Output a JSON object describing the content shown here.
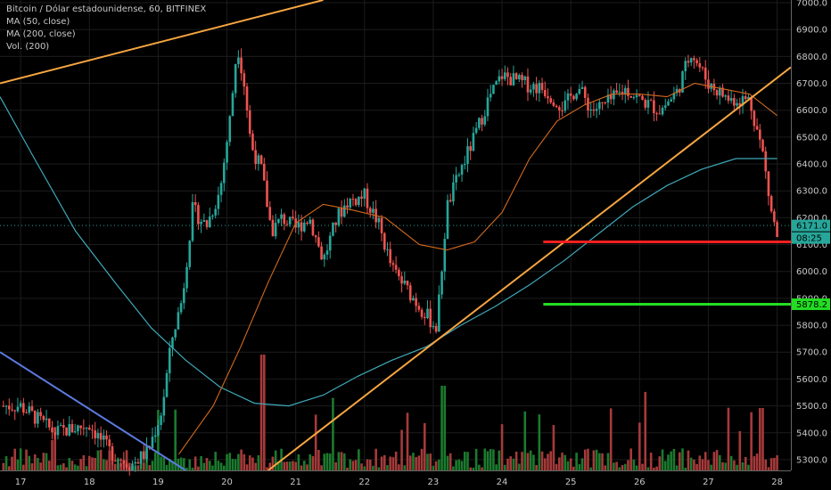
{
  "legend": {
    "symbol_line": "Bitcoin / Dólar estadounidense, 60, BITFINEX",
    "ma50": "MA (50, close)",
    "ma200": "MA (200, close)",
    "vol": "Vol. (200)"
  },
  "price_tags": {
    "last": "6171.0",
    "countdown": "08:25",
    "support": "5878.2"
  },
  "colors": {
    "background": "#000000",
    "grid": "#1c1c1c",
    "up": "#26a69a",
    "down": "#ef5350",
    "up_volume": "#1b7a2e",
    "down_volume": "#a63a3a",
    "ma50": "#d2691e",
    "ma200": "#3fa8b8",
    "trendline": "#f7a541",
    "blue_line": "#5b7be0",
    "resistance": "#ff2020",
    "support": "#22dd22",
    "axis_text": "#c8c8c8",
    "last_price_tag": "#26a69a"
  },
  "chart_data": {
    "type": "candlestick",
    "symbol": "Bitcoin / Dólar estadounidense",
    "interval": "60",
    "exchange": "BITFINEX",
    "x_ticks": [
      "17",
      "18",
      "19",
      "20",
      "21",
      "22",
      "23",
      "24",
      "25",
      "26",
      "27",
      "28"
    ],
    "y_ticks": [
      5300,
      5400,
      5500,
      5600,
      5700,
      5800,
      5900,
      6000,
      6100,
      6200,
      6300,
      6400,
      6500,
      6600,
      6700,
      6800,
      6900,
      7000
    ],
    "ylim": [
      5260,
      7010
    ],
    "xlim": [
      16.7,
      28.2
    ],
    "last_price": 6171.0,
    "horizontal_levels": [
      {
        "price": 6110,
        "color": "red",
        "from_day": 24.6
      },
      {
        "price": 5878.2,
        "color": "green",
        "from_day": 24.6
      }
    ],
    "trendlines": [
      {
        "color": "orange",
        "from": [
          16.7,
          6700
        ],
        "to": [
          21.4,
          7010
        ]
      },
      {
        "color": "orange",
        "from": [
          20.6,
          5260
        ],
        "to": [
          28.2,
          6760
        ]
      },
      {
        "color": "blue",
        "from": [
          16.7,
          5700
        ],
        "to": [
          19.4,
          5260
        ]
      }
    ],
    "price_path": [
      [
        17.0,
        5500
      ],
      [
        17.5,
        5400
      ],
      [
        18.0,
        5430
      ],
      [
        18.3,
        5330
      ],
      [
        18.6,
        5280
      ],
      [
        18.85,
        5330
      ],
      [
        19.05,
        5480
      ],
      [
        19.2,
        5750
      ],
      [
        19.35,
        5900
      ],
      [
        19.5,
        6230
      ],
      [
        19.7,
        6170
      ],
      [
        19.9,
        6300
      ],
      [
        20.05,
        6580
      ],
      [
        20.15,
        6850
      ],
      [
        20.25,
        6700
      ],
      [
        20.35,
        6470
      ],
      [
        20.5,
        6380
      ],
      [
        20.65,
        6150
      ],
      [
        20.8,
        6200
      ],
      [
        21.0,
        6160
      ],
      [
        21.2,
        6200
      ],
      [
        21.4,
        6040
      ],
      [
        21.6,
        6200
      ],
      [
        21.75,
        6260
      ],
      [
        22.0,
        6280
      ],
      [
        22.2,
        6180
      ],
      [
        22.4,
        6010
      ],
      [
        22.6,
        5940
      ],
      [
        22.8,
        5870
      ],
      [
        23.05,
        5790
      ],
      [
        23.2,
        6240
      ],
      [
        23.4,
        6380
      ],
      [
        23.6,
        6500
      ],
      [
        23.8,
        6640
      ],
      [
        24.0,
        6730
      ],
      [
        24.3,
        6700
      ],
      [
        24.6,
        6680
      ],
      [
        24.9,
        6610
      ],
      [
        25.1,
        6690
      ],
      [
        25.3,
        6600
      ],
      [
        25.5,
        6620
      ],
      [
        25.8,
        6680
      ],
      [
        26.0,
        6640
      ],
      [
        26.3,
        6600
      ],
      [
        26.55,
        6670
      ],
      [
        26.75,
        6820
      ],
      [
        27.0,
        6700
      ],
      [
        27.3,
        6640
      ],
      [
        27.6,
        6640
      ],
      [
        27.8,
        6430
      ],
      [
        27.9,
        6240
      ],
      [
        28.0,
        6130
      ]
    ],
    "ma50_path": [
      [
        19.3,
        5320
      ],
      [
        19.8,
        5500
      ],
      [
        20.2,
        5720
      ],
      [
        20.6,
        5960
      ],
      [
        21.0,
        6180
      ],
      [
        21.4,
        6250
      ],
      [
        21.8,
        6230
      ],
      [
        22.3,
        6200
      ],
      [
        22.8,
        6100
      ],
      [
        23.2,
        6080
      ],
      [
        23.6,
        6110
      ],
      [
        24.0,
        6220
      ],
      [
        24.4,
        6420
      ],
      [
        24.8,
        6560
      ],
      [
        25.2,
        6620
      ],
      [
        25.6,
        6660
      ],
      [
        26.0,
        6660
      ],
      [
        26.4,
        6650
      ],
      [
        26.8,
        6700
      ],
      [
        27.2,
        6680
      ],
      [
        27.6,
        6660
      ],
      [
        28.0,
        6580
      ]
    ],
    "ma200_path": [
      [
        16.7,
        6650
      ],
      [
        17.2,
        6420
      ],
      [
        17.8,
        6150
      ],
      [
        18.4,
        5950
      ],
      [
        18.9,
        5790
      ],
      [
        19.4,
        5670
      ],
      [
        19.9,
        5570
      ],
      [
        20.4,
        5510
      ],
      [
        20.9,
        5500
      ],
      [
        21.4,
        5540
      ],
      [
        21.9,
        5610
      ],
      [
        22.4,
        5670
      ],
      [
        22.9,
        5720
      ],
      [
        23.4,
        5800
      ],
      [
        23.9,
        5870
      ],
      [
        24.4,
        5950
      ],
      [
        24.9,
        6040
      ],
      [
        25.4,
        6140
      ],
      [
        25.9,
        6240
      ],
      [
        26.4,
        6320
      ],
      [
        26.9,
        6380
      ],
      [
        27.4,
        6420
      ],
      [
        28.0,
        6420
      ]
    ]
  }
}
